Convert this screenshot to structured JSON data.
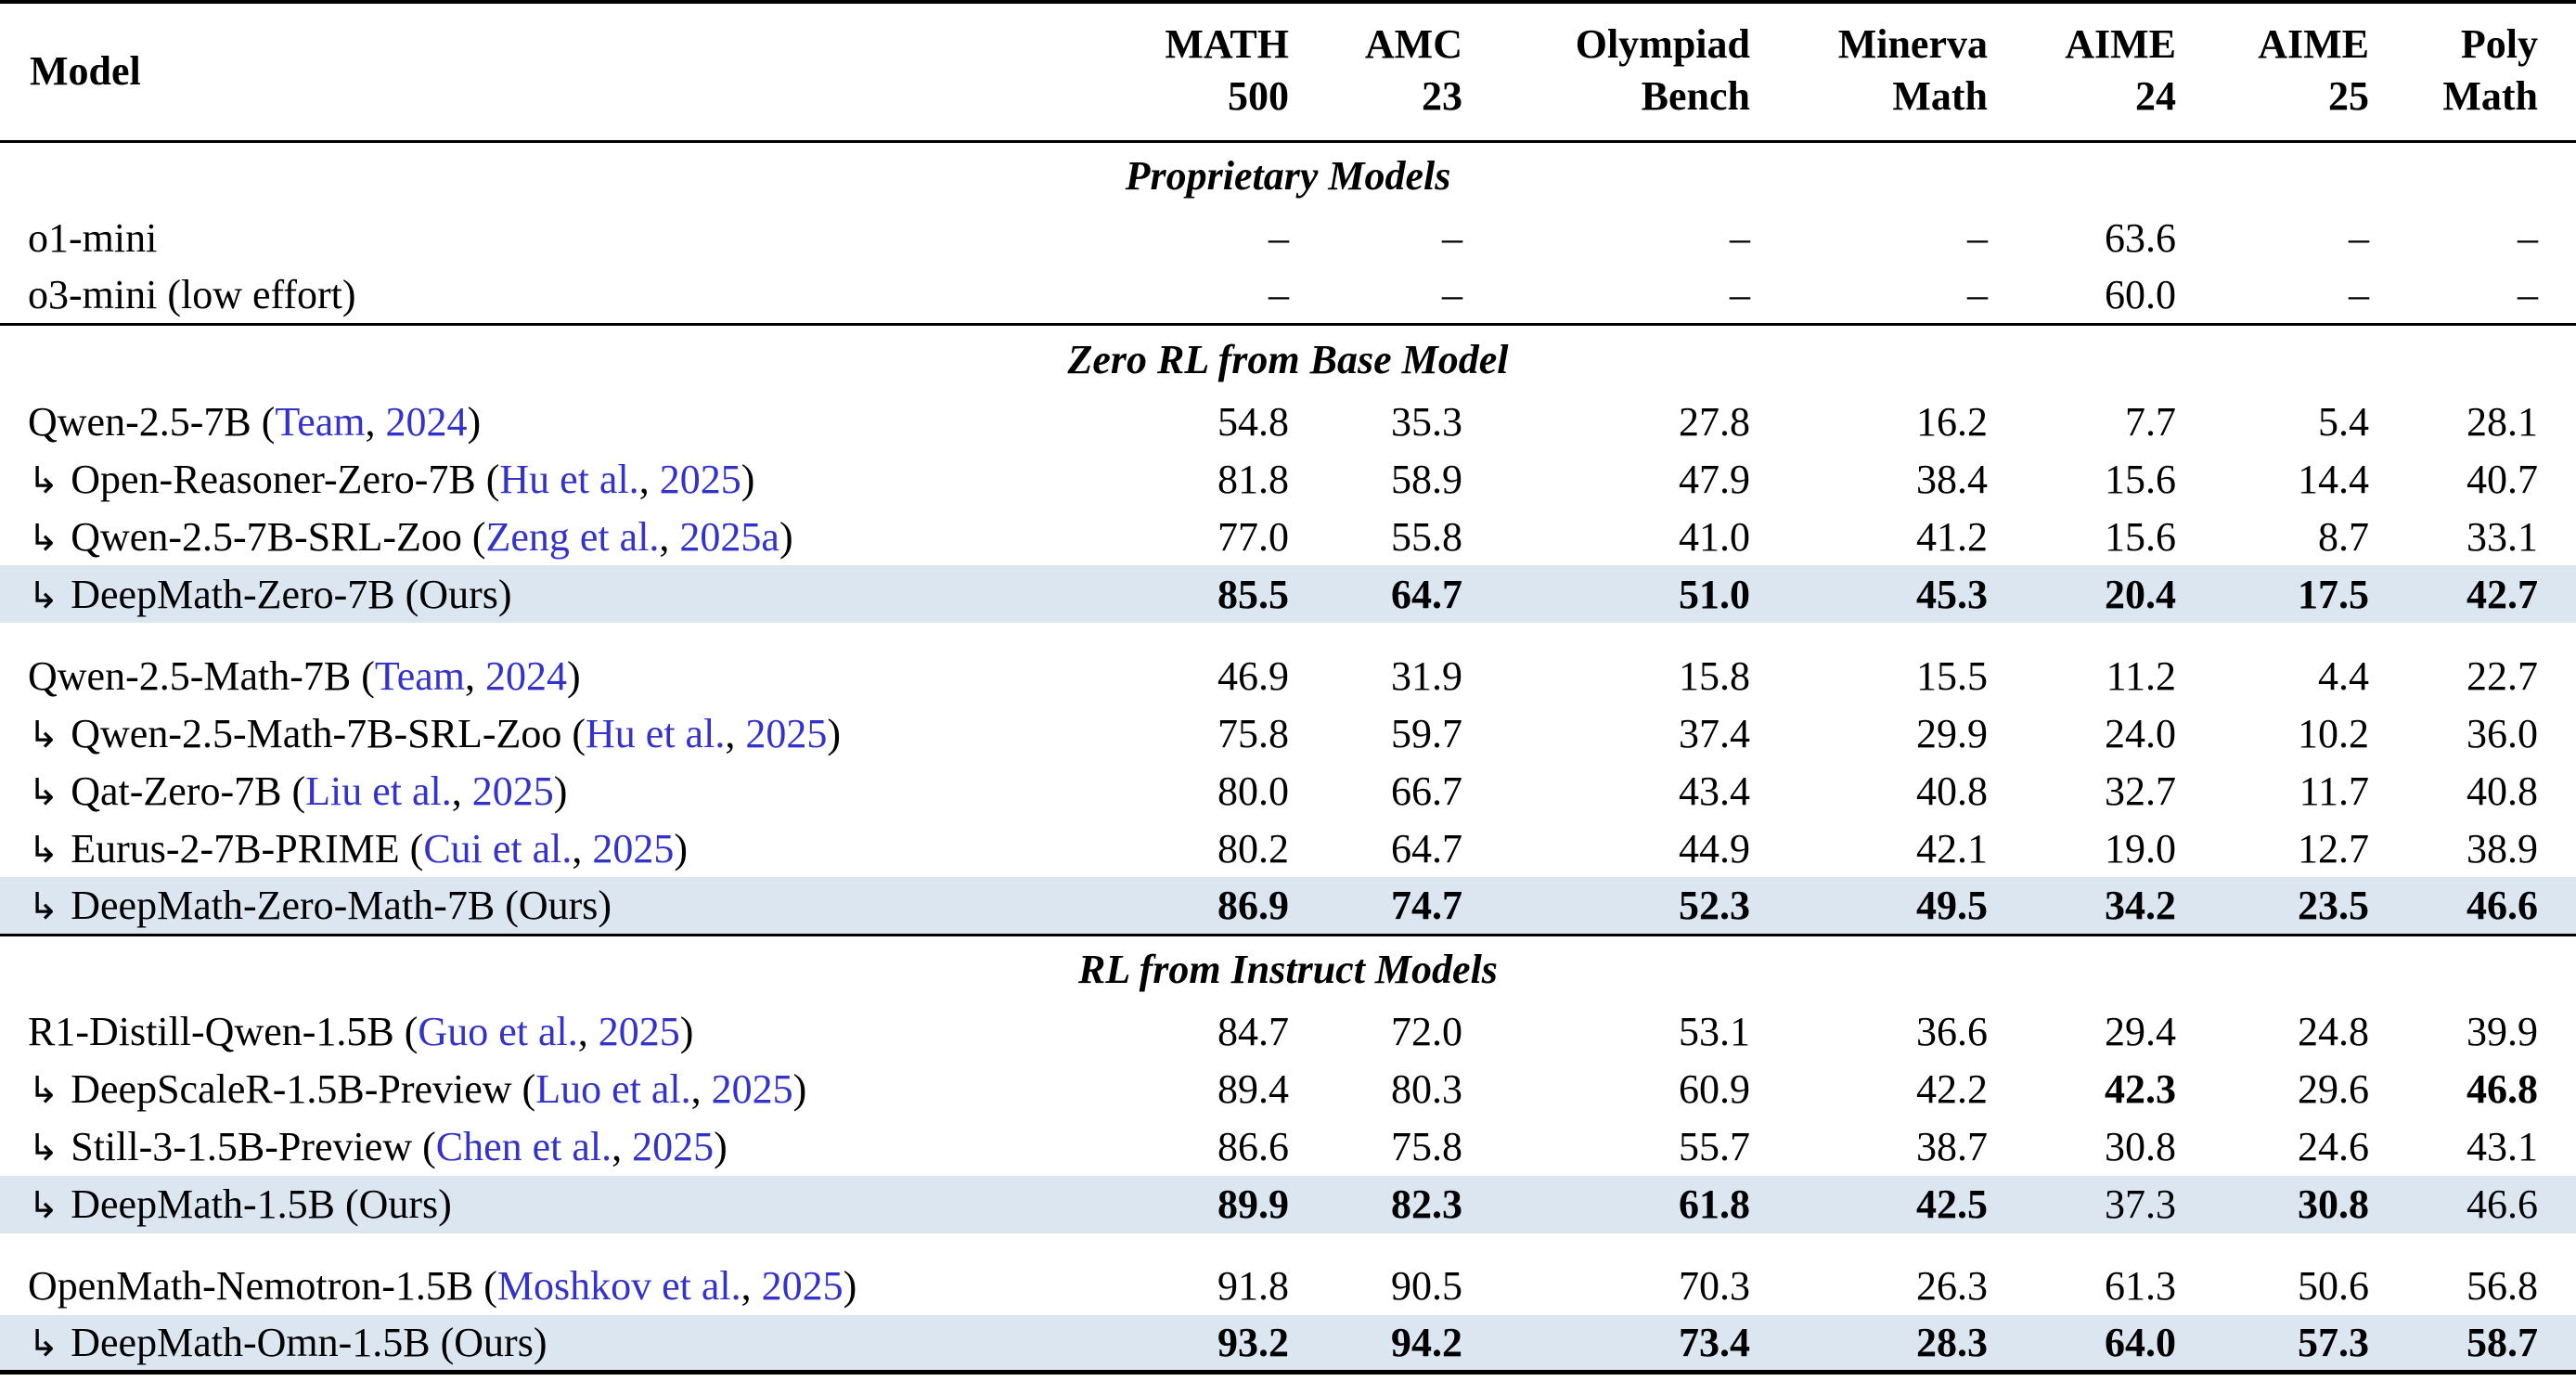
{
  "colors": {
    "highlight_row": "#dce6f1",
    "citation": "#3333cc",
    "text": "#000000",
    "background": "#ffffff"
  },
  "table": {
    "model_column_header": "Model",
    "columns": [
      {
        "line1": "MATH",
        "line2": "500"
      },
      {
        "line1": "AMC",
        "line2": "23"
      },
      {
        "line1": "Olympiad",
        "line2": "Bench"
      },
      {
        "line1": "Minerva",
        "line2": "Math"
      },
      {
        "line1": "AIME",
        "line2": "24"
      },
      {
        "line1": "AIME",
        "line2": "25"
      },
      {
        "line1": "Poly",
        "line2": "Math"
      }
    ],
    "missing_value": "–",
    "sections": [
      {
        "title": "Proprietary Models",
        "groups": [
          [
            {
              "arrow": false,
              "name": "o1-mini",
              "author": null,
              "year": null,
              "suffix": null,
              "ours": false,
              "values": [
                "–",
                "–",
                "–",
                "–",
                "63.6",
                "–",
                "–"
              ],
              "bold": [
                0,
                0,
                0,
                0,
                0,
                0,
                0
              ]
            },
            {
              "arrow": false,
              "name": "o3-mini (low effort)",
              "author": null,
              "year": null,
              "suffix": null,
              "ours": false,
              "values": [
                "–",
                "–",
                "–",
                "–",
                "60.0",
                "–",
                "–"
              ],
              "bold": [
                0,
                0,
                0,
                0,
                0,
                0,
                0
              ]
            }
          ]
        ]
      },
      {
        "title": "Zero RL from Base Model",
        "groups": [
          [
            {
              "arrow": false,
              "name": "Qwen-2.5-7B",
              "author": "Team",
              "year": "2024",
              "suffix": null,
              "ours": false,
              "values": [
                "54.8",
                "35.3",
                "27.8",
                "16.2",
                "7.7",
                "5.4",
                "28.1"
              ],
              "bold": [
                0,
                0,
                0,
                0,
                0,
                0,
                0
              ]
            },
            {
              "arrow": true,
              "name": "Open-Reasoner-Zero-7B",
              "author": "Hu et al.",
              "year": "2025",
              "suffix": null,
              "ours": false,
              "values": [
                "81.8",
                "58.9",
                "47.9",
                "38.4",
                "15.6",
                "14.4",
                "40.7"
              ],
              "bold": [
                0,
                0,
                0,
                0,
                0,
                0,
                0
              ]
            },
            {
              "arrow": true,
              "name": "Qwen-2.5-7B-SRL-Zoo",
              "author": "Zeng et al.",
              "year": "2025a",
              "suffix": null,
              "ours": false,
              "values": [
                "77.0",
                "55.8",
                "41.0",
                "41.2",
                "15.6",
                "8.7",
                "33.1"
              ],
              "bold": [
                0,
                0,
                0,
                0,
                0,
                0,
                0
              ]
            },
            {
              "arrow": true,
              "name": "DeepMath-Zero-7B",
              "author": null,
              "year": null,
              "suffix": "(Ours)",
              "ours": true,
              "values": [
                "85.5",
                "64.7",
                "51.0",
                "45.3",
                "20.4",
                "17.5",
                "42.7"
              ],
              "bold": [
                1,
                1,
                1,
                1,
                1,
                1,
                1
              ]
            }
          ],
          [
            {
              "arrow": false,
              "name": "Qwen-2.5-Math-7B",
              "author": "Team",
              "year": "2024",
              "suffix": null,
              "ours": false,
              "values": [
                "46.9",
                "31.9",
                "15.8",
                "15.5",
                "11.2",
                "4.4",
                "22.7"
              ],
              "bold": [
                0,
                0,
                0,
                0,
                0,
                0,
                0
              ]
            },
            {
              "arrow": true,
              "name": "Qwen-2.5-Math-7B-SRL-Zoo",
              "author": "Hu et al.",
              "year": "2025",
              "suffix": null,
              "ours": false,
              "values": [
                "75.8",
                "59.7",
                "37.4",
                "29.9",
                "24.0",
                "10.2",
                "36.0"
              ],
              "bold": [
                0,
                0,
                0,
                0,
                0,
                0,
                0
              ]
            },
            {
              "arrow": true,
              "name": "Qat-Zero-7B",
              "author": "Liu et al.",
              "year": "2025",
              "suffix": null,
              "ours": false,
              "values": [
                "80.0",
                "66.7",
                "43.4",
                "40.8",
                "32.7",
                "11.7",
                "40.8"
              ],
              "bold": [
                0,
                0,
                0,
                0,
                0,
                0,
                0
              ]
            },
            {
              "arrow": true,
              "name": "Eurus-2-7B-PRIME",
              "author": "Cui et al.",
              "year": "2025",
              "suffix": null,
              "ours": false,
              "values": [
                "80.2",
                "64.7",
                "44.9",
                "42.1",
                "19.0",
                "12.7",
                "38.9"
              ],
              "bold": [
                0,
                0,
                0,
                0,
                0,
                0,
                0
              ]
            },
            {
              "arrow": true,
              "name": "DeepMath-Zero-Math-7B",
              "author": null,
              "year": null,
              "suffix": "(Ours)",
              "ours": true,
              "values": [
                "86.9",
                "74.7",
                "52.3",
                "49.5",
                "34.2",
                "23.5",
                "46.6"
              ],
              "bold": [
                1,
                1,
                1,
                1,
                1,
                1,
                1
              ]
            }
          ]
        ]
      },
      {
        "title": "RL from Instruct Models",
        "groups": [
          [
            {
              "arrow": false,
              "name": "R1-Distill-Qwen-1.5B",
              "author": "Guo et al.",
              "year": "2025",
              "suffix": null,
              "ours": false,
              "values": [
                "84.7",
                "72.0",
                "53.1",
                "36.6",
                "29.4",
                "24.8",
                "39.9"
              ],
              "bold": [
                0,
                0,
                0,
                0,
                0,
                0,
                0
              ]
            },
            {
              "arrow": true,
              "name": "DeepScaleR-1.5B-Preview",
              "author": "Luo et al.",
              "year": "2025",
              "suffix": null,
              "ours": false,
              "values": [
                "89.4",
                "80.3",
                "60.9",
                "42.2",
                "42.3",
                "29.6",
                "46.8"
              ],
              "bold": [
                0,
                0,
                0,
                0,
                1,
                0,
                1
              ]
            },
            {
              "arrow": true,
              "name": "Still-3-1.5B-Preview",
              "author": "Chen et al.",
              "year": "2025",
              "suffix": null,
              "ours": false,
              "values": [
                "86.6",
                "75.8",
                "55.7",
                "38.7",
                "30.8",
                "24.6",
                "43.1"
              ],
              "bold": [
                0,
                0,
                0,
                0,
                0,
                0,
                0
              ]
            },
            {
              "arrow": true,
              "name": "DeepMath-1.5B",
              "author": null,
              "year": null,
              "suffix": "(Ours)",
              "ours": true,
              "values": [
                "89.9",
                "82.3",
                "61.8",
                "42.5",
                "37.3",
                "30.8",
                "46.6"
              ],
              "bold": [
                1,
                1,
                1,
                1,
                0,
                1,
                0
              ]
            }
          ],
          [
            {
              "arrow": false,
              "name": "OpenMath-Nemotron-1.5B",
              "author": "Moshkov et al.",
              "year": "2025",
              "suffix": null,
              "ours": false,
              "values": [
                "91.8",
                "90.5",
                "70.3",
                "26.3",
                "61.3",
                "50.6",
                "56.8"
              ],
              "bold": [
                0,
                0,
                0,
                0,
                0,
                0,
                0
              ]
            },
            {
              "arrow": true,
              "name": "DeepMath-Omn-1.5B",
              "author": null,
              "year": null,
              "suffix": "(Ours)",
              "ours": true,
              "values": [
                "93.2",
                "94.2",
                "73.4",
                "28.3",
                "64.0",
                "57.3",
                "58.7"
              ],
              "bold": [
                1,
                1,
                1,
                1,
                1,
                1,
                1
              ]
            }
          ]
        ]
      }
    ]
  }
}
